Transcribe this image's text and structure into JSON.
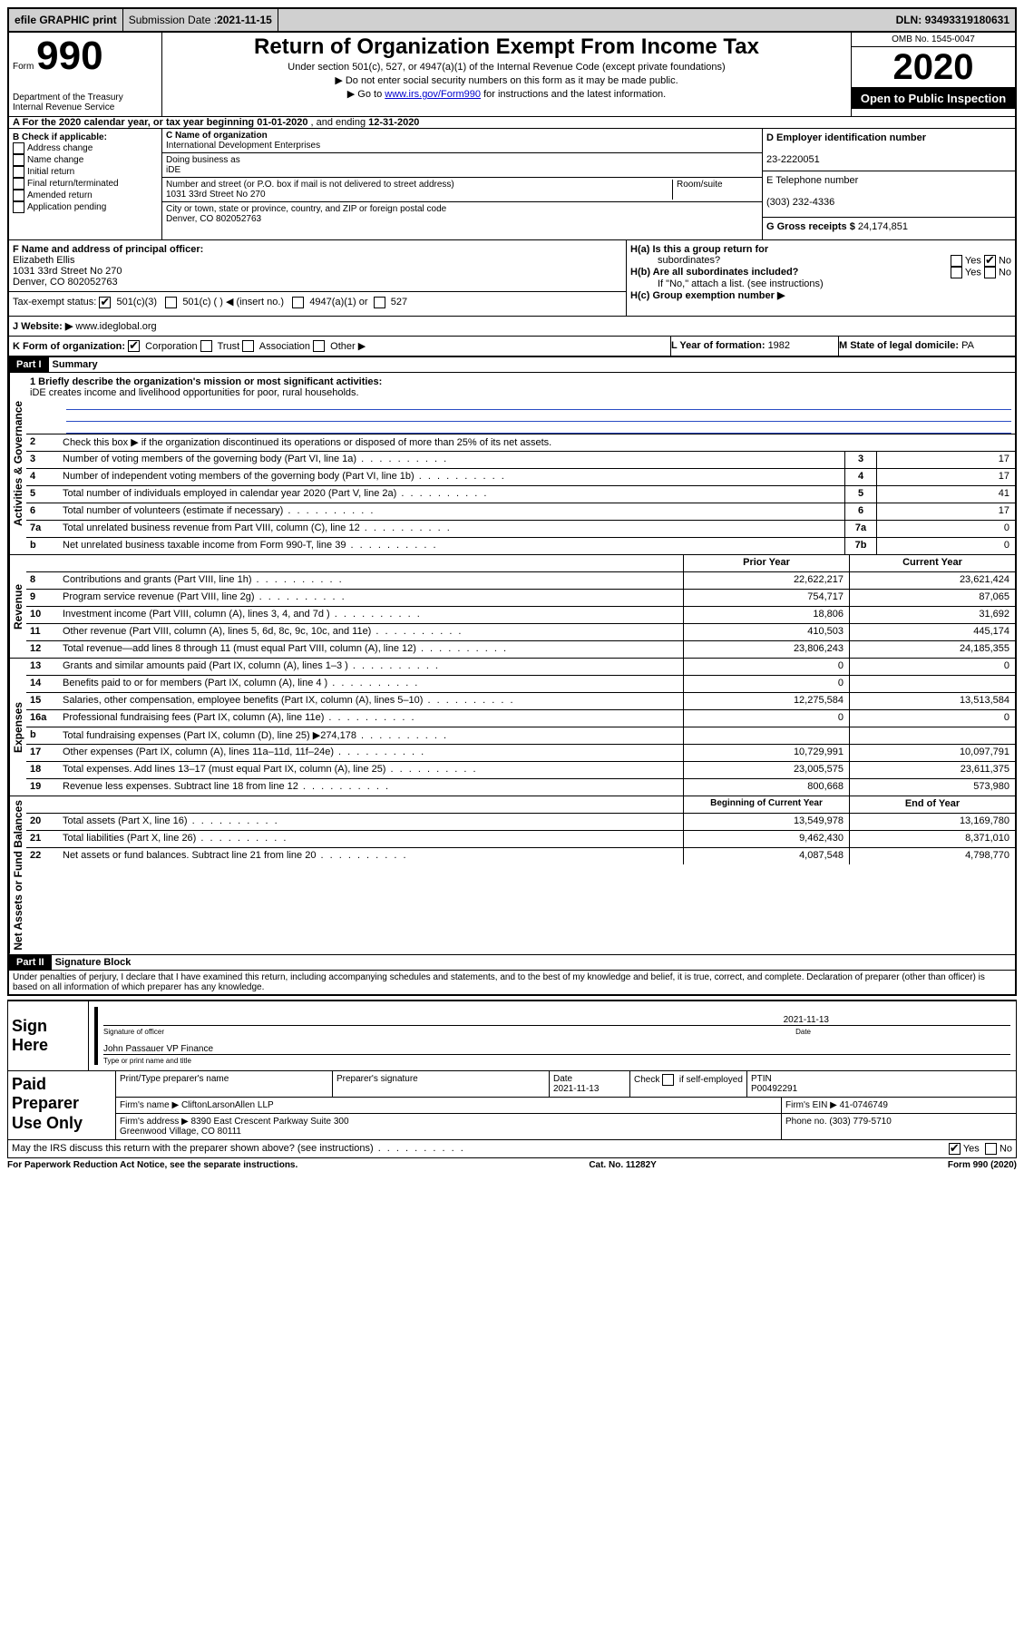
{
  "topbar": {
    "efile": "efile GRAPHIC print",
    "submission_label": "Submission Date : ",
    "submission_date": "2021-11-15",
    "dln_label": "DLN: ",
    "dln": "93493319180631"
  },
  "header": {
    "form_word": "Form",
    "form_no": "990",
    "dept": "Department of the Treasury\nInternal Revenue Service",
    "title": "Return of Organization Exempt From Income Tax",
    "sub1": "Under section 501(c), 527, or 4947(a)(1) of the Internal Revenue Code (except private foundations)",
    "sub2": "▶ Do not enter social security numbers on this form as it may be made public.",
    "sub3_pre": "▶ Go to ",
    "sub3_link": "www.irs.gov/Form990",
    "sub3_post": " for instructions and the latest information.",
    "omb": "OMB No. 1545-0047",
    "year": "2020",
    "open": "Open to Public Inspection"
  },
  "section_a": {
    "label": "A For the 2020 calendar year, or tax year beginning ",
    "begin": "01-01-2020",
    "mid": " , and ending ",
    "end": "12-31-2020"
  },
  "section_b": {
    "title": "B Check if applicable:",
    "items": [
      "Address change",
      "Name change",
      "Initial return",
      "Final return/terminated",
      "Amended return",
      "Application pending"
    ]
  },
  "section_c": {
    "name_label": "C Name of organization",
    "name": "International Development Enterprises",
    "dba_label": "Doing business as",
    "dba": "iDE",
    "street_label": "Number and street (or P.O. box if mail is not delivered to street address)",
    "room_label": "Room/suite",
    "street": "1031 33rd Street No 270",
    "city_label": "City or town, state or province, country, and ZIP or foreign postal code",
    "city": "Denver, CO  802052763"
  },
  "section_d": {
    "label": "D Employer identification number",
    "ein": "23-2220051",
    "tel_label": "E Telephone number",
    "tel": "(303) 232-4336",
    "gross_label": "G Gross receipts $ ",
    "gross": "24,174,851"
  },
  "section_f": {
    "label": "F Name and address of principal officer:",
    "name": "Elizabeth Ellis",
    "addr1": "1031 33rd Street No 270",
    "addr2": "Denver, CO  802052763"
  },
  "section_h": {
    "ha_label": "H(a)  Is this a group return for",
    "ha_sub": "subordinates?",
    "hb_label": "H(b)  Are all subordinates included?",
    "hb_note": "If \"No,\" attach a list. (see instructions)",
    "hc_label": "H(c)  Group exemption number ▶",
    "yes": "Yes",
    "no": "No"
  },
  "tax_exempt": {
    "label": "Tax-exempt status:",
    "c3": "501(c)(3)",
    "c_blank": "501(c) (  ) ◀ (insert no.)",
    "a1": "4947(a)(1) or",
    "s527": "527"
  },
  "section_j": {
    "label": "J   Website: ▶",
    "url": "www.ideglobal.org"
  },
  "section_k": {
    "label": "K Form of organization:",
    "corp": "Corporation",
    "trust": "Trust",
    "assoc": "Association",
    "other": "Other ▶"
  },
  "section_l": {
    "label": "L Year of formation: ",
    "val": "1982"
  },
  "section_m": {
    "label": "M State of legal domicile: ",
    "val": "PA"
  },
  "part1": {
    "hdr": "Part I",
    "title": "Summary",
    "line1_label": "1  Briefly describe the organization's mission or most significant activities:",
    "mission": "iDE creates income and livelihood opportunities for poor, rural households.",
    "line2": "Check this box ▶        if the organization discontinued its operations or disposed of more than 25% of its net assets.",
    "prior_year": "Prior Year",
    "current_year": "Current Year",
    "boy": "Beginning of Current Year",
    "eoy": "End of Year"
  },
  "side": {
    "gov": "Activities & Governance",
    "rev": "Revenue",
    "exp": "Expenses",
    "net": "Net Assets or Fund Balances"
  },
  "govlines": [
    {
      "n": "3",
      "d": "Number of voting members of the governing body (Part VI, line 1a)",
      "k": "3",
      "v": "17"
    },
    {
      "n": "4",
      "d": "Number of independent voting members of the governing body (Part VI, line 1b)",
      "k": "4",
      "v": "17"
    },
    {
      "n": "5",
      "d": "Total number of individuals employed in calendar year 2020 (Part V, line 2a)",
      "k": "5",
      "v": "41"
    },
    {
      "n": "6",
      "d": "Total number of volunteers (estimate if necessary)",
      "k": "6",
      "v": "17"
    },
    {
      "n": "7a",
      "d": "Total unrelated business revenue from Part VIII, column (C), line 12",
      "k": "7a",
      "v": "0"
    },
    {
      "n": "b",
      "d": "Net unrelated business taxable income from Form 990-T, line 39",
      "k": "7b",
      "v": "0"
    }
  ],
  "revlines": [
    {
      "n": "8",
      "d": "Contributions and grants (Part VIII, line 1h)",
      "p": "22,622,217",
      "c": "23,621,424"
    },
    {
      "n": "9",
      "d": "Program service revenue (Part VIII, line 2g)",
      "p": "754,717",
      "c": "87,065"
    },
    {
      "n": "10",
      "d": "Investment income (Part VIII, column (A), lines 3, 4, and 7d )",
      "p": "18,806",
      "c": "31,692"
    },
    {
      "n": "11",
      "d": "Other revenue (Part VIII, column (A), lines 5, 6d, 8c, 9c, 10c, and 11e)",
      "p": "410,503",
      "c": "445,174"
    },
    {
      "n": "12",
      "d": "Total revenue—add lines 8 through 11 (must equal Part VIII, column (A), line 12)",
      "p": "23,806,243",
      "c": "24,185,355"
    }
  ],
  "explines": [
    {
      "n": "13",
      "d": "Grants and similar amounts paid (Part IX, column (A), lines 1–3 )",
      "p": "0",
      "c": "0"
    },
    {
      "n": "14",
      "d": "Benefits paid to or for members (Part IX, column (A), line 4 )",
      "p": "0",
      "c": ""
    },
    {
      "n": "15",
      "d": "Salaries, other compensation, employee benefits (Part IX, column (A), lines 5–10)",
      "p": "12,275,584",
      "c": "13,513,584"
    },
    {
      "n": "16a",
      "d": "Professional fundraising fees (Part IX, column (A), line 11e)",
      "p": "0",
      "c": "0"
    },
    {
      "n": "b",
      "d": "Total fundraising expenses (Part IX, column (D), line 25) ▶274,178",
      "p": "",
      "c": ""
    },
    {
      "n": "17",
      "d": "Other expenses (Part IX, column (A), lines 11a–11d, 11f–24e)",
      "p": "10,729,991",
      "c": "10,097,791"
    },
    {
      "n": "18",
      "d": "Total expenses. Add lines 13–17 (must equal Part IX, column (A), line 25)",
      "p": "23,005,575",
      "c": "23,611,375"
    },
    {
      "n": "19",
      "d": "Revenue less expenses. Subtract line 18 from line 12",
      "p": "800,668",
      "c": "573,980"
    }
  ],
  "netlines": [
    {
      "n": "20",
      "d": "Total assets (Part X, line 16)",
      "p": "13,549,978",
      "c": "13,169,780"
    },
    {
      "n": "21",
      "d": "Total liabilities (Part X, line 26)",
      "p": "9,462,430",
      "c": "8,371,010"
    },
    {
      "n": "22",
      "d": "Net assets or fund balances. Subtract line 21 from line 20",
      "p": "4,087,548",
      "c": "4,798,770"
    }
  ],
  "part2": {
    "hdr": "Part II",
    "title": "Signature Block",
    "jurat": "Under penalties of perjury, I declare that I have examined this return, including accompanying schedules and statements, and to the best of my knowledge and belief, it is true, correct, and complete. Declaration of preparer (other than officer) is based on all information of which preparer has any knowledge."
  },
  "sign": {
    "here": "Sign Here",
    "sig_of_officer": "Signature of officer",
    "date_label": "Date",
    "date": "2021-11-13",
    "officer": "John Passauer VP Finance",
    "type_label": "Type or print name and title"
  },
  "paid": {
    "label": "Paid Preparer Use Only",
    "print_label": "Print/Type preparer's name",
    "sig_label": "Preparer's signature",
    "date_label": "Date",
    "date": "2021-11-13",
    "check_label": "Check         if self-employed",
    "ptin_label": "PTIN",
    "ptin": "P00492291",
    "firm_name_label": "Firm's name    ▶",
    "firm_name": "CliftonLarsonAllen LLP",
    "firm_ein_label": "Firm's EIN ▶",
    "firm_ein": "41-0746749",
    "firm_addr_label": "Firm's address ▶",
    "firm_addr": "8390 East Crescent Parkway Suite 300\nGreenwood Village, CO  80111",
    "phone_label": "Phone no. ",
    "phone": "(303) 779-5710"
  },
  "discuss": {
    "q": "May the IRS discuss this return with the preparer shown above? (see instructions)",
    "yes": "Yes",
    "no": "No"
  },
  "footer": {
    "left": "For Paperwork Reduction Act Notice, see the separate instructions.",
    "mid": "Cat. No. 11282Y",
    "right": "Form 990 (2020)"
  }
}
